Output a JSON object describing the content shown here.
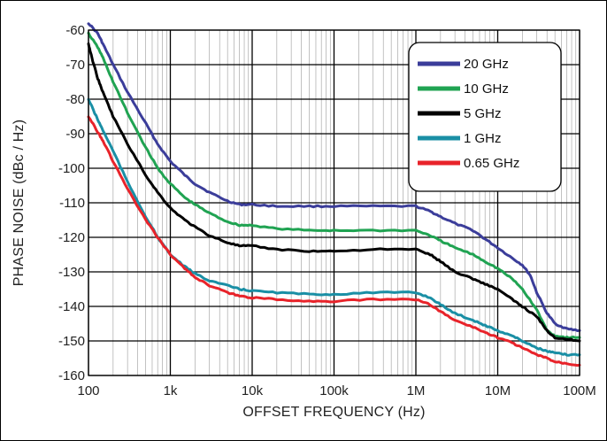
{
  "chart_data": {
    "type": "line",
    "title": "",
    "xlabel": "OFFSET FREQUENCY (Hz)",
    "ylabel": "PHASE NOISE (dBc / Hz)",
    "xscale": "log",
    "xlim": [
      100,
      100000000
    ],
    "ylim": [
      -160,
      -60
    ],
    "x_ticks": [
      {
        "value": 100,
        "label": "100"
      },
      {
        "value": 1000,
        "label": "1k"
      },
      {
        "value": 10000,
        "label": "10k"
      },
      {
        "value": 100000,
        "label": "100k"
      },
      {
        "value": 1000000,
        "label": "1M"
      },
      {
        "value": 10000000,
        "label": "10M"
      },
      {
        "value": 100000000,
        "label": "100M"
      }
    ],
    "y_ticks": [
      {
        "value": -60,
        "label": "-60"
      },
      {
        "value": -70,
        "label": "-70"
      },
      {
        "value": -80,
        "label": "-80"
      },
      {
        "value": -90,
        "label": "-90"
      },
      {
        "value": -100,
        "label": "-100"
      },
      {
        "value": -110,
        "label": "-110"
      },
      {
        "value": -120,
        "label": "-120"
      },
      {
        "value": -130,
        "label": "-130"
      },
      {
        "value": -140,
        "label": "-140"
      },
      {
        "value": -150,
        "label": "-150"
      },
      {
        "value": -160,
        "label": "-160"
      }
    ],
    "grid": true,
    "legend_position": "top-right",
    "series": [
      {
        "name": "20 GHz",
        "color": "#3b3d9a",
        "x": [
          100,
          130,
          150,
          200,
          300,
          500,
          700,
          1000,
          1500,
          2000,
          3000,
          5000,
          7000,
          10000,
          20000,
          50000,
          100000,
          300000,
          1000000,
          1500000,
          2000000,
          3000000,
          5000000,
          7000000,
          10000000,
          15000000,
          20000000,
          25000000,
          30000000,
          40000000,
          50000000,
          70000000,
          100000000
        ],
        "y": [
          -58,
          -61,
          -64,
          -70,
          -78,
          -87,
          -93,
          -98,
          -102,
          -104.5,
          -107,
          -109.5,
          -110.5,
          -110.5,
          -111,
          -111,
          -111,
          -111,
          -111,
          -112.5,
          -114,
          -116,
          -118,
          -120.5,
          -123,
          -126,
          -128,
          -131,
          -136,
          -142,
          -145,
          -146.5,
          -147
        ]
      },
      {
        "name": "10 GHz",
        "color": "#20a352",
        "x": [
          100,
          130,
          150,
          200,
          300,
          500,
          700,
          1000,
          1500,
          2000,
          3000,
          5000,
          7000,
          10000,
          20000,
          50000,
          100000,
          300000,
          1000000,
          1500000,
          2000000,
          3000000,
          5000000,
          7000000,
          10000000,
          15000000,
          20000000,
          30000000,
          40000000,
          50000000,
          70000000,
          100000000
        ],
        "y": [
          -61,
          -65,
          -68,
          -75,
          -84,
          -94,
          -100,
          -104.5,
          -108.5,
          -110.5,
          -113,
          -115.5,
          -116.5,
          -116.5,
          -117.5,
          -118,
          -118,
          -118,
          -118,
          -119.5,
          -121,
          -123,
          -125,
          -127,
          -129,
          -132,
          -135,
          -141,
          -147,
          -148.5,
          -149,
          -149
        ]
      },
      {
        "name": "5 GHz",
        "color": "#000000",
        "x": [
          100,
          110,
          130,
          150,
          200,
          300,
          500,
          700,
          1000,
          1500,
          2000,
          3000,
          5000,
          7000,
          10000,
          20000,
          50000,
          100000,
          300000,
          1000000,
          1500000,
          2000000,
          3000000,
          5000000,
          7000000,
          10000000,
          15000000,
          20000000,
          30000000,
          40000000,
          50000000,
          70000000,
          100000000
        ],
        "y": [
          -64,
          -68,
          -74,
          -78,
          -85,
          -93,
          -102,
          -107,
          -111.5,
          -115,
          -117,
          -119.5,
          -121.5,
          -122.5,
          -122.5,
          -123.5,
          -124,
          -124,
          -123.5,
          -123.5,
          -125,
          -127,
          -130,
          -132,
          -133.5,
          -135,
          -138,
          -140,
          -143,
          -147,
          -149,
          -149.5,
          -150
        ]
      },
      {
        "name": "1 GHz",
        "color": "#1a8fa5",
        "x": [
          100,
          130,
          150,
          200,
          300,
          500,
          700,
          1000,
          1500,
          2000,
          3000,
          5000,
          7000,
          10000,
          20000,
          50000,
          100000,
          300000,
          1000000,
          1500000,
          2000000,
          3000000,
          5000000,
          7000000,
          10000000,
          15000000,
          20000000,
          30000000,
          40000000,
          50000000,
          70000000,
          100000000
        ],
        "y": [
          -80,
          -86,
          -89,
          -95,
          -104,
          -114,
          -120,
          -125,
          -128.5,
          -130.5,
          -132.5,
          -134,
          -135,
          -135.5,
          -136,
          -136.5,
          -136.5,
          -136,
          -136,
          -137.5,
          -139.5,
          -142,
          -144,
          -145.5,
          -147,
          -148.5,
          -150,
          -152,
          -153,
          -153.5,
          -154,
          -154
        ]
      },
      {
        "name": "0.65 GHz",
        "color": "#e8232a",
        "x": [
          100,
          130,
          150,
          200,
          300,
          500,
          700,
          1000,
          1500,
          2000,
          3000,
          5000,
          7000,
          10000,
          20000,
          50000,
          100000,
          300000,
          1000000,
          1500000,
          2000000,
          3000000,
          5000000,
          7000000,
          10000000,
          15000000,
          20000000,
          30000000,
          40000000,
          50000000,
          70000000,
          100000000
        ],
        "y": [
          -85,
          -89.5,
          -92,
          -98,
          -106,
          -115,
          -120,
          -125,
          -129,
          -131.5,
          -134,
          -136,
          -137,
          -137.5,
          -138,
          -138.5,
          -138.5,
          -138,
          -138,
          -139.5,
          -141.5,
          -144,
          -146,
          -147.5,
          -149,
          -150.5,
          -152,
          -154,
          -155,
          -156,
          -156.5,
          -157
        ]
      }
    ]
  }
}
